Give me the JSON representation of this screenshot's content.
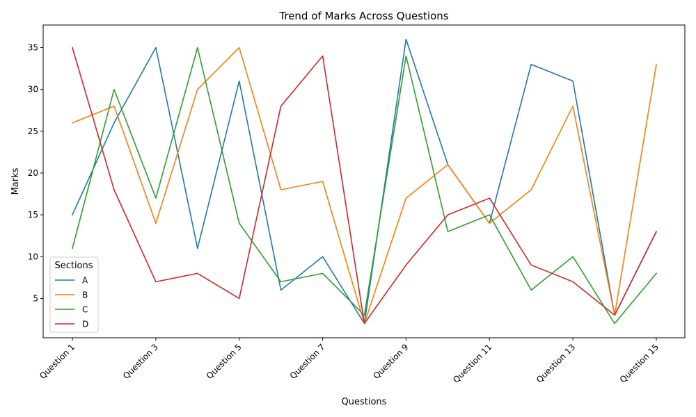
{
  "chart_data": {
    "type": "line",
    "title": "Trend of Marks Across Questions",
    "xlabel": "Questions",
    "ylabel": "Marks",
    "categories": [
      "Question 1",
      "Question 2",
      "Question 3",
      "Question 4",
      "Question 5",
      "Question 6",
      "Question 7",
      "Question 8",
      "Question 9",
      "Question 10",
      "Question 11",
      "Question 12",
      "Question 13",
      "Question 14",
      "Question 15"
    ],
    "x_tick_labels": [
      "Question 1",
      "Question 3",
      "Question 5",
      "Question 7",
      "Question 9",
      "Question 11",
      "Question 13",
      "Question 15"
    ],
    "y_ticks": [
      5,
      10,
      15,
      20,
      25,
      30,
      35
    ],
    "ylim": [
      0.3,
      37.7
    ],
    "grid": false,
    "legend": {
      "title": "Sections",
      "placement": "lower-left"
    },
    "series": [
      {
        "name": "A",
        "color": "#1f77b4",
        "values": [
          15,
          26,
          35,
          11,
          31,
          6,
          10,
          2,
          36,
          21,
          14,
          33,
          31,
          3,
          13
        ]
      },
      {
        "name": "B",
        "color": "#ff7f0e",
        "values": [
          26,
          28,
          14,
          30,
          35,
          18,
          19,
          2,
          17,
          21,
          14,
          18,
          28,
          3,
          33
        ]
      },
      {
        "name": "C",
        "color": "#2ca02c",
        "values": [
          11,
          30,
          17,
          35,
          14,
          7,
          8,
          3,
          34,
          13,
          15,
          6,
          10,
          2,
          8
        ]
      },
      {
        "name": "D",
        "color": "#d62728",
        "values": [
          35,
          18,
          7,
          8,
          5,
          28,
          34,
          2,
          9,
          15,
          17,
          9,
          7,
          3,
          13
        ]
      }
    ]
  }
}
